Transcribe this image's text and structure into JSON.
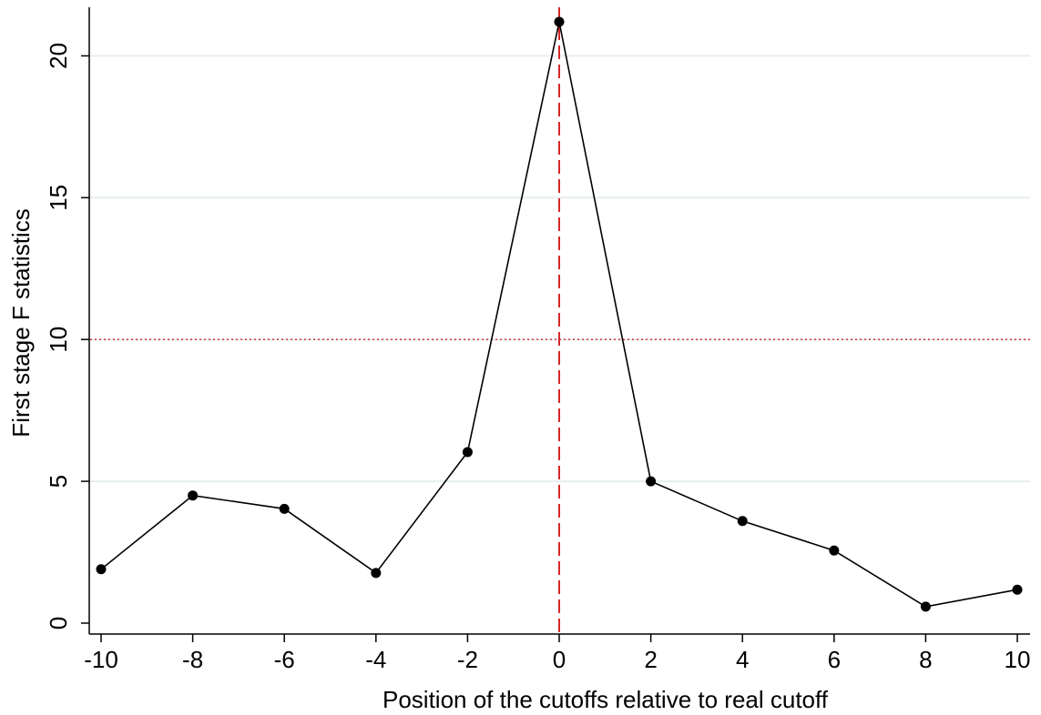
{
  "chart_data": {
    "type": "line",
    "title": "",
    "xlabel": "Position of the cutoffs relative to real cutoff",
    "ylabel": "First stage F statistics",
    "x": [
      -10,
      -8,
      -6,
      -4,
      -2,
      0,
      2,
      4,
      6,
      8,
      10
    ],
    "series": [
      {
        "values": [
          1.9,
          4.5,
          4.03,
          1.77,
          6.03,
          21.2,
          5.0,
          3.6,
          2.56,
          0.58,
          1.18
        ]
      }
    ],
    "xlim": [
      -10,
      10
    ],
    "ylim": [
      0,
      21.2
    ],
    "xticks": [
      "-10",
      "-8",
      "-6",
      "-4",
      "-2",
      "0",
      "2",
      "4",
      "6",
      "8",
      "10"
    ],
    "yticks": [
      "0",
      "5",
      "10",
      "15",
      "20"
    ],
    "reference_lines": [
      {
        "orientation": "vertical",
        "value": 0,
        "style": "dashed",
        "color": "#d62728"
      },
      {
        "orientation": "horizontal",
        "value": 10,
        "style": "dotted",
        "color": "#d62728"
      }
    ],
    "grid": "horizontal",
    "legend": "none"
  },
  "colors": {
    "line": "#000000",
    "marker": "#000000",
    "gridline": "#e6eef0",
    "reference": "#d62728",
    "axis": "#000000"
  }
}
